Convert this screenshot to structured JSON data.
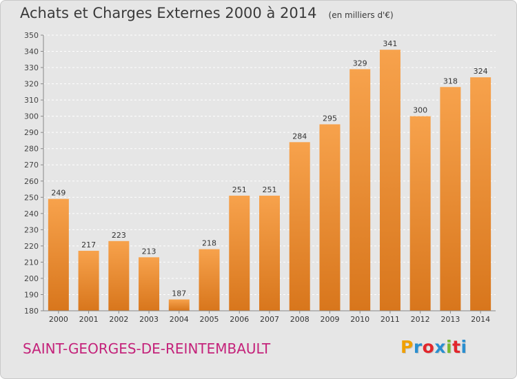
{
  "chart_title": "Achats et Charges Externes 2000 à 2014",
  "chart_unit": "(en milliers d'€)",
  "commune": "SAINT-GEORGES-DE-REINTEMBAULT",
  "logo": {
    "text": "Proxiti",
    "colors": [
      "#f0a000",
      "#2a8fd0",
      "#e2262c",
      "#2a8fd0",
      "#7cb82f",
      "#e2262c",
      "#2a8fd0"
    ]
  },
  "colors": {
    "bar_top": "#f7a24c",
    "bar_bottom": "#d8761c",
    "title": "#3a3a3a",
    "commune": "#c4227a",
    "background": "#e6e6e6"
  },
  "chart_data": {
    "type": "bar",
    "categories": [
      "2000",
      "2001",
      "2002",
      "2003",
      "2004",
      "2005",
      "2006",
      "2007",
      "2008",
      "2009",
      "2010",
      "2011",
      "2012",
      "2013",
      "2014"
    ],
    "values": [
      249,
      217,
      223,
      213,
      187,
      218,
      251,
      251,
      284,
      295,
      329,
      341,
      300,
      318,
      324
    ],
    "title": "Achats et Charges Externes 2000 à 2014",
    "ylim": [
      180,
      350
    ],
    "yticks": [
      180,
      190,
      200,
      210,
      220,
      230,
      240,
      250,
      260,
      270,
      280,
      290,
      300,
      310,
      320,
      330,
      340,
      350
    ],
    "grid": true
  }
}
